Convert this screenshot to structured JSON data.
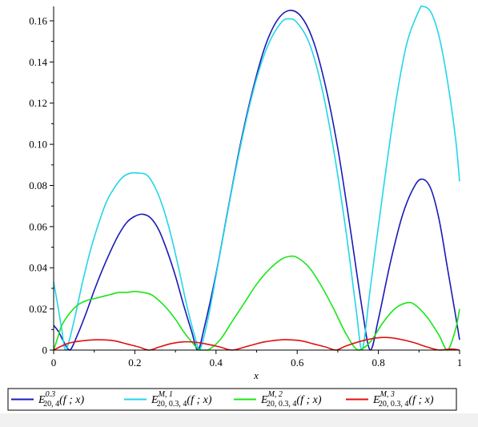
{
  "chart_data": {
    "type": "line",
    "title": "",
    "xlabel": "x",
    "ylabel": "",
    "xlim": [
      0,
      1
    ],
    "ylim": [
      0,
      0.167
    ],
    "grid": false,
    "legend_position": "bottom",
    "x_ticks": [
      "0",
      "0.2",
      "0.4",
      "0.6",
      "0.8",
      "1"
    ],
    "x_tick_values": [
      0,
      0.2,
      0.4,
      0.6,
      0.8,
      1
    ],
    "y_ticks": [
      "0",
      "0.02",
      "0.04",
      "0.06",
      "0.08",
      "0.10",
      "0.12",
      "0.14",
      "0.16"
    ],
    "y_tick_values": [
      0,
      0.02,
      0.04,
      0.06,
      0.08,
      0.1,
      0.12,
      0.14,
      0.16
    ],
    "series": [
      {
        "key": "E03",
        "legend": {
          "base": "E",
          "sup": "0.3",
          "sub": "20, 4",
          "arg": "(f ; x)"
        },
        "color": "#1a1ab8",
        "points": [
          [
            0,
            0.012
          ],
          [
            0.012,
            0.009
          ],
          [
            0.025,
            0.004
          ],
          [
            0.04,
            0.0
          ],
          [
            0.06,
            0.008
          ],
          [
            0.08,
            0.018
          ],
          [
            0.1,
            0.029
          ],
          [
            0.12,
            0.039
          ],
          [
            0.14,
            0.048
          ],
          [
            0.16,
            0.056
          ],
          [
            0.18,
            0.062
          ],
          [
            0.2,
            0.065
          ],
          [
            0.22,
            0.066
          ],
          [
            0.24,
            0.064
          ],
          [
            0.26,
            0.058
          ],
          [
            0.28,
            0.048
          ],
          [
            0.3,
            0.036
          ],
          [
            0.32,
            0.022
          ],
          [
            0.34,
            0.009
          ],
          [
            0.355,
            0.0
          ],
          [
            0.37,
            0.01
          ],
          [
            0.4,
            0.037
          ],
          [
            0.43,
            0.069
          ],
          [
            0.46,
            0.1
          ],
          [
            0.49,
            0.126
          ],
          [
            0.52,
            0.147
          ],
          [
            0.55,
            0.16
          ],
          [
            0.58,
            0.165
          ],
          [
            0.61,
            0.162
          ],
          [
            0.64,
            0.15
          ],
          [
            0.67,
            0.128
          ],
          [
            0.7,
            0.098
          ],
          [
            0.73,
            0.06
          ],
          [
            0.76,
            0.02
          ],
          [
            0.78,
            0.0
          ],
          [
            0.8,
            0.015
          ],
          [
            0.83,
            0.043
          ],
          [
            0.86,
            0.066
          ],
          [
            0.89,
            0.08
          ],
          [
            0.91,
            0.083
          ],
          [
            0.93,
            0.078
          ],
          [
            0.95,
            0.063
          ],
          [
            0.97,
            0.04
          ],
          [
            0.99,
            0.017
          ],
          [
            1,
            0.005
          ]
        ]
      },
      {
        "key": "EM1",
        "legend": {
          "base": "E",
          "sup": "M, 1",
          "sub": "20, 0.3, 4",
          "arg": "(f ; x)"
        },
        "color": "#22d6e8",
        "points": [
          [
            0,
            0.033
          ],
          [
            0.01,
            0.022
          ],
          [
            0.02,
            0.01
          ],
          [
            0.03,
            0.0
          ],
          [
            0.05,
            0.014
          ],
          [
            0.07,
            0.032
          ],
          [
            0.09,
            0.048
          ],
          [
            0.11,
            0.061
          ],
          [
            0.13,
            0.072
          ],
          [
            0.15,
            0.079
          ],
          [
            0.17,
            0.084
          ],
          [
            0.19,
            0.086
          ],
          [
            0.21,
            0.086
          ],
          [
            0.23,
            0.085
          ],
          [
            0.25,
            0.079
          ],
          [
            0.27,
            0.069
          ],
          [
            0.29,
            0.055
          ],
          [
            0.31,
            0.038
          ],
          [
            0.33,
            0.02
          ],
          [
            0.35,
            0.005
          ],
          [
            0.36,
            0.0
          ],
          [
            0.38,
            0.015
          ],
          [
            0.41,
            0.047
          ],
          [
            0.44,
            0.079
          ],
          [
            0.47,
            0.108
          ],
          [
            0.5,
            0.132
          ],
          [
            0.53,
            0.149
          ],
          [
            0.56,
            0.159
          ],
          [
            0.58,
            0.161
          ],
          [
            0.6,
            0.159
          ],
          [
            0.63,
            0.149
          ],
          [
            0.66,
            0.128
          ],
          [
            0.69,
            0.097
          ],
          [
            0.72,
            0.058
          ],
          [
            0.745,
            0.02
          ],
          [
            0.76,
            0.0
          ],
          [
            0.78,
            0.03
          ],
          [
            0.81,
            0.075
          ],
          [
            0.84,
            0.117
          ],
          [
            0.87,
            0.149
          ],
          [
            0.9,
            0.165
          ],
          [
            0.91,
            0.167
          ],
          [
            0.93,
            0.164
          ],
          [
            0.95,
            0.152
          ],
          [
            0.97,
            0.131
          ],
          [
            0.99,
            0.103
          ],
          [
            1,
            0.082
          ]
        ]
      },
      {
        "key": "EM2",
        "legend": {
          "base": "E",
          "sup": "M, 2",
          "sub": "20, 0.3, 4",
          "arg": "(f ; x)"
        },
        "color": "#19e619",
        "points": [
          [
            0,
            0.0
          ],
          [
            0.01,
            0.006
          ],
          [
            0.02,
            0.012
          ],
          [
            0.04,
            0.018
          ],
          [
            0.06,
            0.022
          ],
          [
            0.08,
            0.024
          ],
          [
            0.1,
            0.025
          ],
          [
            0.12,
            0.026
          ],
          [
            0.14,
            0.027
          ],
          [
            0.16,
            0.028
          ],
          [
            0.18,
            0.028
          ],
          [
            0.2,
            0.0285
          ],
          [
            0.22,
            0.028
          ],
          [
            0.24,
            0.027
          ],
          [
            0.26,
            0.024
          ],
          [
            0.28,
            0.02
          ],
          [
            0.3,
            0.015
          ],
          [
            0.32,
            0.009
          ],
          [
            0.34,
            0.004
          ],
          [
            0.36,
            0.0
          ],
          [
            0.38,
            0.0
          ],
          [
            0.41,
            0.005
          ],
          [
            0.44,
            0.014
          ],
          [
            0.47,
            0.023
          ],
          [
            0.5,
            0.032
          ],
          [
            0.53,
            0.039
          ],
          [
            0.56,
            0.044
          ],
          [
            0.58,
            0.0455
          ],
          [
            0.6,
            0.045
          ],
          [
            0.63,
            0.04
          ],
          [
            0.66,
            0.031
          ],
          [
            0.69,
            0.02
          ],
          [
            0.72,
            0.008
          ],
          [
            0.75,
            0.0
          ],
          [
            0.78,
            0.004
          ],
          [
            0.81,
            0.013
          ],
          [
            0.84,
            0.02
          ],
          [
            0.87,
            0.023
          ],
          [
            0.89,
            0.022
          ],
          [
            0.92,
            0.016
          ],
          [
            0.95,
            0.007
          ],
          [
            0.97,
            0.0
          ],
          [
            0.99,
            0.01
          ],
          [
            1,
            0.02
          ]
        ]
      },
      {
        "key": "EM3",
        "legend": {
          "base": "E",
          "sup": "M, 3",
          "sub": "20, 0.3, 4",
          "arg": "(f ; x)"
        },
        "color": "#e01010",
        "points": [
          [
            0,
            0.0
          ],
          [
            0.02,
            0.002
          ],
          [
            0.04,
            0.0035
          ],
          [
            0.07,
            0.0045
          ],
          [
            0.1,
            0.005
          ],
          [
            0.12,
            0.005
          ],
          [
            0.15,
            0.0045
          ],
          [
            0.18,
            0.003
          ],
          [
            0.21,
            0.0015
          ],
          [
            0.235,
            0.0
          ],
          [
            0.26,
            0.0015
          ],
          [
            0.29,
            0.0032
          ],
          [
            0.32,
            0.004
          ],
          [
            0.35,
            0.0038
          ],
          [
            0.38,
            0.0028
          ],
          [
            0.41,
            0.0015
          ],
          [
            0.44,
            0.0
          ],
          [
            0.48,
            0.002
          ],
          [
            0.52,
            0.004
          ],
          [
            0.56,
            0.005
          ],
          [
            0.58,
            0.005
          ],
          [
            0.61,
            0.0045
          ],
          [
            0.64,
            0.003
          ],
          [
            0.67,
            0.0015
          ],
          [
            0.695,
            0.0
          ],
          [
            0.72,
            0.002
          ],
          [
            0.76,
            0.0045
          ],
          [
            0.8,
            0.006
          ],
          [
            0.83,
            0.006
          ],
          [
            0.86,
            0.005
          ],
          [
            0.89,
            0.0035
          ],
          [
            0.92,
            0.0015
          ],
          [
            0.95,
            0.0
          ],
          [
            0.98,
            0.0005
          ],
          [
            1,
            0.0
          ]
        ]
      }
    ]
  }
}
